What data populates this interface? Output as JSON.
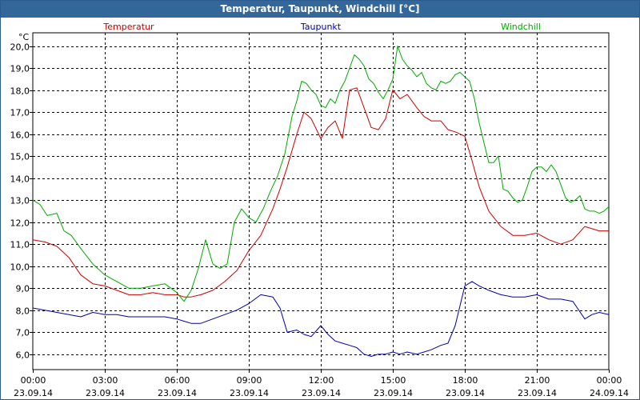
{
  "window": {
    "title": "Temperatur, Taupunkt, Windchill [°C]"
  },
  "colors": {
    "titlebar": "#336699",
    "temperatur": "#cc0000",
    "taupunkt": "#0000aa",
    "windchill": "#00aa00",
    "grid": "#000000"
  },
  "chart_data": {
    "type": "line",
    "title": "Temperatur, Taupunkt, Windchill [°C]",
    "ylabel": "°C",
    "ylim": [
      5.3,
      20.6
    ],
    "yticks": [
      6.0,
      7.0,
      8.0,
      9.0,
      10.0,
      11.0,
      12.0,
      13.0,
      14.0,
      15.0,
      16.0,
      17.0,
      18.0,
      19.0,
      20.0
    ],
    "ytick_labels": [
      "6,0",
      "7,0",
      "8,0",
      "9,0",
      "10,0",
      "11,0",
      "12,0",
      "13,0",
      "14,0",
      "15,0",
      "16,0",
      "17,0",
      "18,0",
      "19,0",
      "20,0"
    ],
    "xlim": [
      0,
      24
    ],
    "xticks": [
      {
        "hour": 0,
        "time": "00:00",
        "date": "23.09.14"
      },
      {
        "hour": 3,
        "time": "03:00",
        "date": "23.09.14"
      },
      {
        "hour": 6,
        "time": "06:00",
        "date": "23.09.14"
      },
      {
        "hour": 9,
        "time": "09:00",
        "date": "23.09.14"
      },
      {
        "hour": 12,
        "time": "12:00",
        "date": "23.09.14"
      },
      {
        "hour": 15,
        "time": "15:00",
        "date": "23.09.14"
      },
      {
        "hour": 18,
        "time": "18:00",
        "date": "23.09.14"
      },
      {
        "hour": 21,
        "time": "21:00",
        "date": "23.09.14"
      },
      {
        "hour": 24,
        "time": "00:00",
        "date": "24.09.14"
      }
    ],
    "grid": true,
    "legend": "top",
    "series": [
      {
        "name": "Temperatur",
        "x": [
          0,
          0.5,
          1,
          1.5,
          2,
          2.5,
          3,
          3.5,
          4,
          4.5,
          5,
          5.5,
          6,
          6.3,
          6.6,
          7,
          7.5,
          8,
          8.5,
          9,
          9.5,
          10,
          10.3,
          10.6,
          11,
          11.3,
          11.6,
          12,
          12.3,
          12.6,
          12.9,
          13.2,
          13.5,
          13.8,
          14.1,
          14.4,
          14.7,
          15,
          15.3,
          15.6,
          16,
          16.3,
          16.6,
          17,
          17.3,
          17.6,
          18,
          18.3,
          18.6,
          19,
          19.5,
          20,
          20.5,
          21,
          21.5,
          22,
          22.5,
          23,
          23.3,
          23.6,
          24
        ],
        "y": [
          11.2,
          11.1,
          10.9,
          10.4,
          9.6,
          9.2,
          9.1,
          8.9,
          8.7,
          8.7,
          8.8,
          8.7,
          8.7,
          8.6,
          8.6,
          8.7,
          8.9,
          9.3,
          9.8,
          10.7,
          11.4,
          12.6,
          13.5,
          14.5,
          16.0,
          17.0,
          16.7,
          15.8,
          16.3,
          16.6,
          15.8,
          18.0,
          18.1,
          17.2,
          16.3,
          16.2,
          16.7,
          18.0,
          17.6,
          17.8,
          17.2,
          16.8,
          16.6,
          16.6,
          16.2,
          16.1,
          15.9,
          14.8,
          13.6,
          12.5,
          11.8,
          11.4,
          11.4,
          11.5,
          11.2,
          11.0,
          11.2,
          11.8,
          11.7,
          11.6,
          11.6
        ]
      },
      {
        "name": "Taupunkt",
        "x": [
          0,
          0.5,
          1,
          1.5,
          2,
          2.5,
          3,
          3.5,
          4,
          4.5,
          5,
          5.5,
          6,
          6.3,
          6.6,
          7,
          7.5,
          8,
          8.5,
          9,
          9.5,
          10,
          10.3,
          10.6,
          11,
          11.3,
          11.6,
          12,
          12.3,
          12.6,
          12.9,
          13.2,
          13.5,
          13.8,
          14.1,
          14.4,
          14.7,
          15,
          15.3,
          15.6,
          16,
          16.3,
          16.6,
          17,
          17.3,
          17.6,
          18,
          18.3,
          18.6,
          19,
          19.5,
          20,
          20.5,
          21,
          21.5,
          22,
          22.5,
          23,
          23.3,
          23.6,
          24
        ],
        "y": [
          8.1,
          8.0,
          7.9,
          7.8,
          7.7,
          7.9,
          7.8,
          7.8,
          7.7,
          7.7,
          7.7,
          7.7,
          7.6,
          7.5,
          7.4,
          7.4,
          7.6,
          7.8,
          8.0,
          8.3,
          8.7,
          8.6,
          8.1,
          7.0,
          7.1,
          6.9,
          6.8,
          7.3,
          6.9,
          6.6,
          6.5,
          6.4,
          6.3,
          6.0,
          5.9,
          6.0,
          6.0,
          6.1,
          6.0,
          6.1,
          6.0,
          6.1,
          6.2,
          6.4,
          6.5,
          7.3,
          9.1,
          9.3,
          9.1,
          8.9,
          8.7,
          8.6,
          8.6,
          8.7,
          8.5,
          8.5,
          8.4,
          7.6,
          7.8,
          7.9,
          7.8
        ]
      },
      {
        "name": "Windchill",
        "x": [
          0,
          0.3,
          0.6,
          1,
          1.3,
          1.6,
          2,
          2.5,
          3,
          3.5,
          4,
          4.5,
          5,
          5.5,
          6,
          6.3,
          6.6,
          6.9,
          7.2,
          7.5,
          7.8,
          8.1,
          8.4,
          8.7,
          9,
          9.3,
          9.6,
          9.9,
          10.2,
          10.5,
          10.8,
          11,
          11.2,
          11.4,
          11.6,
          11.8,
          12,
          12.2,
          12.4,
          12.6,
          12.8,
          13,
          13.2,
          13.4,
          13.6,
          13.8,
          14,
          14.2,
          14.4,
          14.6,
          14.8,
          15,
          15.2,
          15.4,
          15.6,
          15.8,
          16,
          16.2,
          16.4,
          16.6,
          16.8,
          17,
          17.2,
          17.4,
          17.6,
          17.8,
          18,
          18.2,
          18.4,
          18.6,
          18.8,
          19,
          19.2,
          19.4,
          19.6,
          19.8,
          20,
          20.2,
          20.4,
          20.6,
          20.8,
          21,
          21.2,
          21.4,
          21.6,
          21.8,
          22,
          22.2,
          22.4,
          22.6,
          22.8,
          23,
          23.2,
          23.4,
          23.6,
          23.8,
          24
        ],
        "y": [
          13.0,
          12.8,
          12.3,
          12.4,
          11.6,
          11.4,
          10.8,
          10.1,
          9.6,
          9.3,
          9.0,
          9.0,
          9.1,
          9.2,
          8.8,
          8.4,
          8.9,
          9.9,
          11.2,
          10.1,
          9.9,
          10.1,
          12.0,
          12.6,
          12.2,
          12.0,
          12.6,
          13.4,
          14.1,
          15.1,
          16.8,
          17.5,
          18.4,
          18.3,
          18.0,
          17.8,
          17.3,
          17.2,
          17.6,
          17.4,
          18.0,
          18.4,
          19.0,
          19.6,
          19.4,
          19.1,
          18.5,
          18.3,
          17.9,
          17.6,
          18.0,
          18.5,
          20.0,
          19.4,
          19.1,
          18.9,
          18.6,
          18.8,
          18.3,
          18.1,
          18.0,
          18.4,
          18.3,
          18.4,
          18.7,
          18.8,
          18.6,
          18.4,
          17.6,
          16.5,
          15.6,
          14.7,
          14.7,
          15.0,
          13.5,
          13.4,
          13.1,
          12.9,
          13.0,
          13.6,
          14.3,
          14.5,
          14.5,
          14.3,
          14.6,
          14.3,
          13.7,
          13.1,
          12.9,
          13.0,
          13.2,
          12.6,
          12.5,
          12.5,
          12.4,
          12.5,
          12.7
        ]
      }
    ]
  }
}
